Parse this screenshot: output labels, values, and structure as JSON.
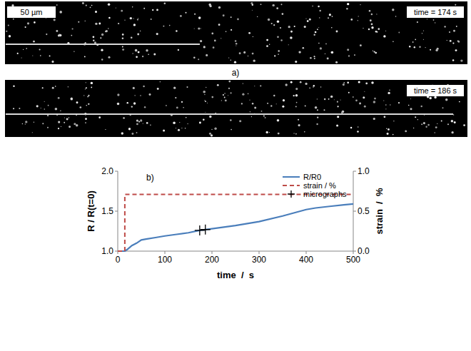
{
  "micrographs": {
    "panel_label": "a)",
    "scale_bar": "50 µm",
    "frames": [
      {
        "time_label": "time = 174 s"
      },
      {
        "time_label": "time = 186 s"
      }
    ]
  },
  "chart_data": {
    "type": "line",
    "panel_label": "b)",
    "x_label": "time  /  s",
    "y_label": "R / R(t=0)",
    "y2_label": "strain  /  %",
    "xlim": [
      0,
      500
    ],
    "xticks": [
      0,
      100,
      200,
      300,
      400,
      500
    ],
    "ylim": [
      1,
      2
    ],
    "yticks": [
      {
        "value": 1,
        "label": "1.0"
      },
      {
        "value": 1.5,
        "label": "1.5"
      },
      {
        "value": 2,
        "label": "2.0"
      }
    ],
    "y2lim": [
      0,
      1
    ],
    "y2ticks": [
      {
        "value": 0,
        "label": "0.0"
      },
      {
        "value": 0.5,
        "label": "0.5"
      },
      {
        "value": 1,
        "label": "1.0"
      }
    ],
    "legend": "upper right",
    "grid": false,
    "series": [
      {
        "name": "R/R0",
        "color": "#4a7ebb",
        "type": "line",
        "line_style": "solid",
        "x": [
          0,
          15,
          20,
          30,
          40,
          50,
          60,
          80,
          100,
          125,
          150,
          174,
          200,
          250,
          300,
          350,
          400,
          420,
          450,
          480,
          500
        ],
        "values": [
          1.0,
          1.0,
          1.02,
          1.07,
          1.1,
          1.14,
          1.15,
          1.17,
          1.19,
          1.21,
          1.23,
          1.26,
          1.28,
          1.32,
          1.37,
          1.44,
          1.52,
          1.54,
          1.56,
          1.58,
          1.59
        ]
      },
      {
        "name": "strain / %",
        "color": "#be4b48",
        "type": "line",
        "line_style": "dashed",
        "axis": "y2",
        "x": [
          0,
          15,
          15,
          500
        ],
        "values": [
          0,
          0,
          0.71,
          0.71
        ]
      },
      {
        "name": "micrographs",
        "color": "#000000",
        "type": "scatter",
        "marker": "plus",
        "x": [
          174,
          186
        ],
        "values": [
          1.26,
          1.27
        ]
      }
    ]
  }
}
